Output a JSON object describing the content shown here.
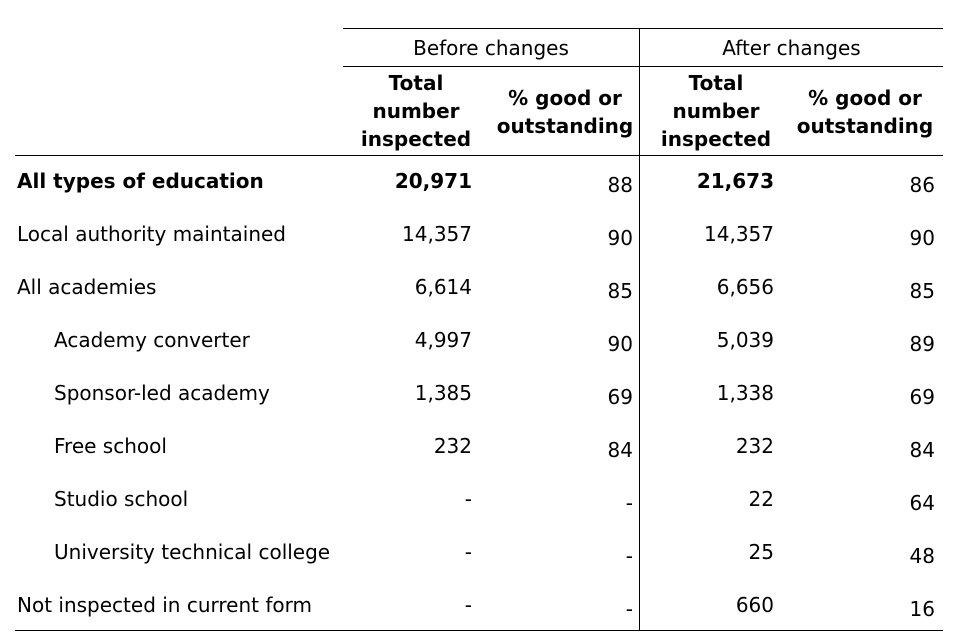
{
  "table": {
    "groups": [
      "Before changes",
      "After changes"
    ],
    "subheaders": [
      "Total number inspected",
      "% good or outstanding",
      "Total number inspected",
      "% good or outstanding"
    ],
    "rows": [
      {
        "label": "All types of education",
        "before_total": "20,971",
        "before_pct": "88",
        "after_total": "21,673",
        "after_pct": "86"
      },
      {
        "label": "Local authority maintained",
        "before_total": "14,357",
        "before_pct": "90",
        "after_total": "14,357",
        "after_pct": "90"
      },
      {
        "label": "All academies",
        "before_total": "6,614",
        "before_pct": "85",
        "after_total": "6,656",
        "after_pct": "85"
      },
      {
        "label": "Academy converter",
        "before_total": "4,997",
        "before_pct": "90",
        "after_total": "5,039",
        "after_pct": "89"
      },
      {
        "label": "Sponsor-led academy",
        "before_total": "1,385",
        "before_pct": "69",
        "after_total": "1,338",
        "after_pct": "69"
      },
      {
        "label": "Free school",
        "before_total": "232",
        "before_pct": "84",
        "after_total": "232",
        "after_pct": "84"
      },
      {
        "label": "Studio school",
        "before_total": "-",
        "before_pct": "-",
        "after_total": "22",
        "after_pct": "64"
      },
      {
        "label": "University technical college",
        "before_total": "-",
        "before_pct": "-",
        "after_total": "25",
        "after_pct": "48"
      },
      {
        "label": "Not inspected in current form",
        "before_total": "-",
        "before_pct": "-",
        "after_total": "660",
        "after_pct": "16"
      }
    ]
  }
}
